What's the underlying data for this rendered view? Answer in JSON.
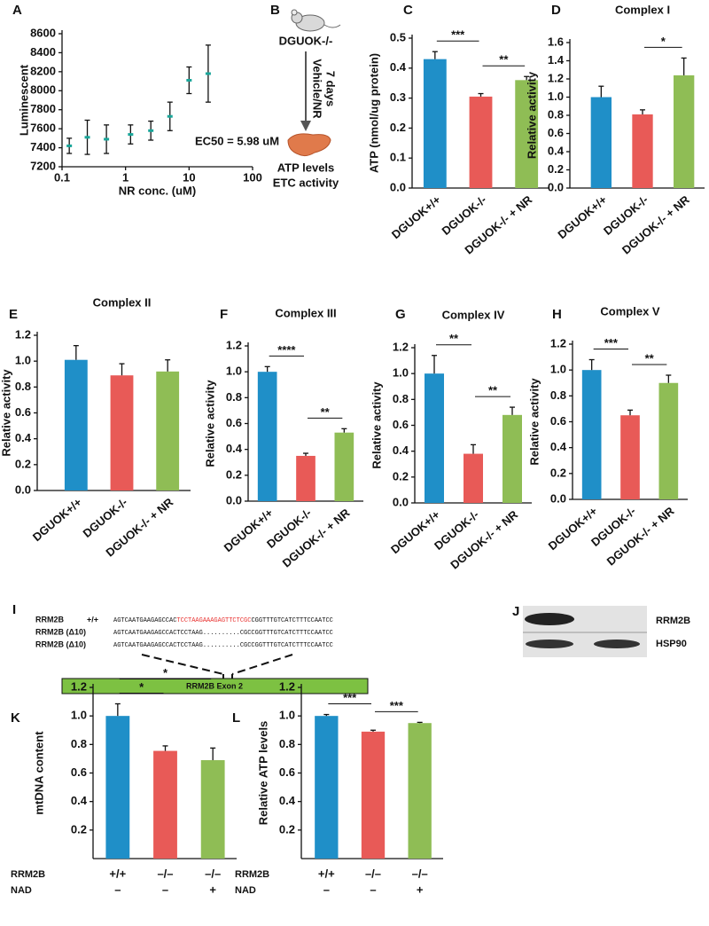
{
  "chart_data": [
    {
      "type": "scatter",
      "label": "A",
      "ylabel": "Luminescent",
      "xlabel": "NR conc. (uM)",
      "annotation": "EC50 = 5.98 uM",
      "x": [
        0.13,
        0.25,
        0.5,
        1.2,
        2.5,
        5,
        10,
        20
      ],
      "values": [
        7420,
        7510,
        7490,
        7540,
        7580,
        7730,
        8110,
        8180
      ],
      "errors": [
        80,
        180,
        150,
        100,
        100,
        150,
        140,
        300
      ],
      "color": "#1aa69a",
      "xlog": true,
      "xlim": [
        0.1,
        100
      ],
      "xticks": [
        0.1,
        1,
        10,
        100
      ],
      "ylim": [
        7200,
        8600
      ],
      "yticks": [
        7200,
        7400,
        7600,
        7800,
        8000,
        8200,
        8400,
        8600
      ]
    },
    {
      "type": "bar",
      "label": "C",
      "ylabel": "ATP (nmol/ug protein)",
      "categories": [
        "DGUOK+/+",
        "DGUOK-/-",
        "DGUOK-/- + NR"
      ],
      "values": [
        0.43,
        0.305,
        0.36
      ],
      "errors": [
        0.025,
        0.01,
        0.012
      ],
      "colors": [
        "#1f8fc8",
        "#e85a57",
        "#8fbd55"
      ],
      "ylim": [
        0,
        0.5
      ],
      "yticks": [
        {
          "value": 0,
          "label": "0.0"
        },
        0.1,
        0.2,
        0.3,
        0.4,
        0.5
      ],
      "significance_vs_previous": [
        null,
        "***",
        "**"
      ]
    },
    {
      "type": "bar",
      "label": "D",
      "title": "Complex I",
      "ylabel": "Relative activity",
      "categories": [
        "DGUOK+/+",
        "DGUOK-/-",
        "DGUOK-/- + NR"
      ],
      "values": [
        1.0,
        0.81,
        1.24
      ],
      "errors": [
        0.12,
        0.05,
        0.19
      ],
      "colors": [
        "#1f8fc8",
        "#e85a57",
        "#8fbd55"
      ],
      "ylim": [
        0,
        1.6
      ],
      "yticks": [
        {
          "value": 0,
          "label": "0.0"
        },
        0.2,
        0.4,
        0.6,
        0.8,
        {
          "value": 1,
          "label": "1.0"
        },
        1.2,
        1.4,
        1.6
      ],
      "significance_vs_previous": [
        null,
        null,
        "*"
      ]
    },
    {
      "type": "bar",
      "label": "E",
      "title": "Complex II",
      "ylabel": "Relative activity",
      "categories": [
        "DGUOK+/+",
        "DGUOK-/-",
        "DGUOK-/- + NR"
      ],
      "values": [
        1.01,
        0.89,
        0.92
      ],
      "errors": [
        0.11,
        0.09,
        0.09
      ],
      "colors": [
        "#1f8fc8",
        "#e85a57",
        "#8fbd55"
      ],
      "ylim": [
        0,
        1.2
      ],
      "yticks": [
        {
          "value": 0,
          "label": "0.0"
        },
        0.2,
        0.4,
        0.6,
        0.8,
        {
          "value": 1,
          "label": "1.0"
        },
        1.2
      ]
    },
    {
      "type": "bar",
      "label": "F",
      "title": "Complex III",
      "ylabel": "Relative activity",
      "categories": [
        "DGUOK+/+",
        "DGUOK-/-",
        "DGUOK-/- + NR"
      ],
      "values": [
        1.0,
        0.35,
        0.53
      ],
      "errors": [
        0.04,
        0.02,
        0.03
      ],
      "colors": [
        "#1f8fc8",
        "#e85a57",
        "#8fbd55"
      ],
      "ylim": [
        0,
        1.2
      ],
      "yticks": [
        {
          "value": 0,
          "label": "0.0"
        },
        0.2,
        0.4,
        0.6,
        0.8,
        {
          "value": 1,
          "label": "1.0"
        },
        1.2
      ],
      "significance_vs_previous": [
        null,
        "****",
        "**"
      ]
    },
    {
      "type": "bar",
      "label": "G",
      "title": "Complex IV",
      "ylabel": "Relative activity",
      "categories": [
        "DGUOK+/+",
        "DGUOK-/-",
        "DGUOK-/- + NR"
      ],
      "values": [
        1.0,
        0.38,
        0.68
      ],
      "errors": [
        0.14,
        0.07,
        0.06
      ],
      "colors": [
        "#1f8fc8",
        "#e85a57",
        "#8fbd55"
      ],
      "ylim": [
        0,
        1.2
      ],
      "yticks": [
        {
          "value": 0,
          "label": "0.0"
        },
        0.2,
        0.4,
        0.6,
        0.8,
        {
          "value": 1,
          "label": "1.0"
        },
        1.2
      ],
      "significance_vs_previous": [
        null,
        "**",
        "**"
      ]
    },
    {
      "type": "bar",
      "label": "H",
      "title": "Complex V",
      "ylabel": "Relative activity",
      "categories": [
        "DGUOK+/+",
        "DGUOK-/-",
        "DGUOK-/- + NR"
      ],
      "values": [
        1.0,
        0.65,
        0.9
      ],
      "errors": [
        0.08,
        0.04,
        0.06
      ],
      "colors": [
        "#1f8fc8",
        "#e85a57",
        "#8fbd55"
      ],
      "ylim": [
        0,
        1.2
      ],
      "yticks": [
        {
          "value": 0,
          "label": "0.0"
        },
        0.2,
        0.4,
        0.6,
        0.8,
        {
          "value": 1,
          "label": "1.0"
        },
        1.2
      ],
      "significance_vs_previous": [
        null,
        "***",
        "**"
      ]
    },
    {
      "type": "bar",
      "label": "K",
      "ylabel": "mtDNA content",
      "conditions": [
        {
          "name": "RRM2B",
          "labels": [
            "+/+",
            "–/–",
            "–/–"
          ]
        },
        {
          "name": "NAD",
          "labels": [
            "–",
            "–",
            "+"
          ]
        }
      ],
      "values": [
        1.0,
        0.755,
        0.69
      ],
      "errors": [
        0.085,
        0.035,
        0.085
      ],
      "colors": [
        "#1f8fc8",
        "#e85a57",
        "#8fbd55"
      ],
      "ylim": [
        0,
        1.2
      ],
      "yticks": [
        0.2,
        0.4,
        0.6,
        0.8,
        {
          "value": 1,
          "label": "1.0"
        },
        1.2
      ],
      "significance_vs_first": [
        null,
        "*",
        "*"
      ]
    },
    {
      "type": "bar",
      "label": "L",
      "ylabel": "Relative ATP levels",
      "conditions": [
        {
          "name": "RRM2B",
          "labels": [
            "+/+",
            "–/–",
            "–/–"
          ]
        },
        {
          "name": "NAD",
          "labels": [
            "–",
            "–",
            "+"
          ]
        }
      ],
      "values": [
        1.0,
        0.89,
        0.95
      ],
      "errors": [
        0.01,
        0.01,
        0.005
      ],
      "colors": [
        "#1f8fc8",
        "#e85a57",
        "#8fbd55"
      ],
      "ylim": [
        0,
        1.2
      ],
      "yticks": [
        0.2,
        0.4,
        0.6,
        0.8,
        {
          "value": 1,
          "label": "1.0"
        },
        1.2
      ],
      "significance_vs_previous": [
        null,
        "***",
        "***"
      ]
    }
  ],
  "treatment_diagram": {
    "label": "B",
    "model": "DGUOK-/-",
    "treatment": "Vehicle/NR",
    "duration": "7 days",
    "readouts": [
      "ATP levels",
      "ETC activity"
    ]
  },
  "sequence_alignment": {
    "label": "I",
    "rows": [
      {
        "name": "RRM2B",
        "genotype": "+/+",
        "parts": [
          "AGTCAATGAAGAGCCAC",
          "TCCTAAGAAAGAGTTCTCGC",
          "CGGTTTGTCATCTTTCCAATCC"
        ]
      },
      {
        "name": "RRM2B (Δ10)",
        "parts": [
          "AGTCAATGAAGAGCCACTCCTAAG..........CGCCGGTTTGTCATCTTTCCAATCC"
        ]
      },
      {
        "name": "RRM2B (Δ10)",
        "parts": [
          "AGTCAATGAAGAGCCACTCCTAAG..........CGCCGGTTTGTCATCTTTCCAATCC"
        ]
      }
    ],
    "exon": "RRM2B Exon 2"
  },
  "western_blot": {
    "label": "J",
    "bands": [
      "RRM2B",
      "HSP90"
    ]
  }
}
